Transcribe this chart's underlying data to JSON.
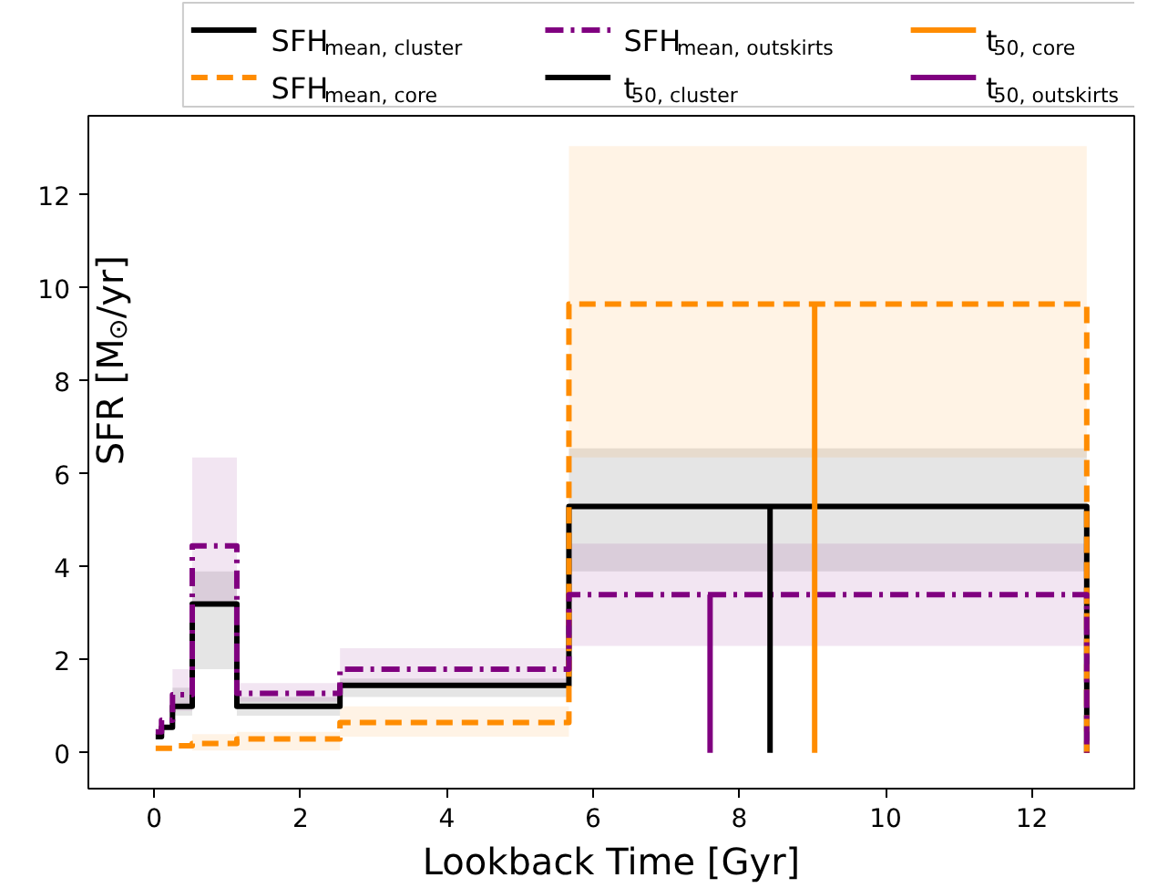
{
  "chart_data": {
    "type": "step",
    "xlabel": "Lookback Time [Gyr]",
    "ylabel": "SFR [M$_{⊙}$/yr]",
    "xlim": [
      -0.9,
      13.4
    ],
    "ylim": [
      -0.77,
      13.7
    ],
    "xticks": [
      0,
      2,
      4,
      6,
      8,
      10,
      12
    ],
    "yticks": [
      0,
      2,
      4,
      6,
      8,
      10,
      12
    ],
    "grid": false,
    "legend": "top",
    "series": [
      {
        "name": "SFH$_{mean, cluster}$",
        "color": "#000000",
        "line_style": "solid",
        "x": [
          0.02,
          0.1,
          0.25,
          0.52,
          1.13,
          2.54,
          5.67,
          12.75
        ],
        "values": [
          0.35,
          0.55,
          1.0,
          3.2,
          1.0,
          1.45,
          5.3,
          0
        ],
        "lower": [
          null,
          null,
          0.8,
          1.8,
          0.8,
          1.2,
          3.9,
          3.9
        ],
        "upper": [
          null,
          null,
          1.4,
          3.9,
          1.2,
          1.6,
          6.55,
          6.55
        ]
      },
      {
        "name": "SFH$_{mean, core}$",
        "color": "#ff8c00",
        "line_style": "dashed",
        "x": [
          0.02,
          0.1,
          0.25,
          0.52,
          1.13,
          2.54,
          5.67,
          12.75
        ],
        "values": [
          0.1,
          0.1,
          0.15,
          0.2,
          0.3,
          0.65,
          9.65,
          0
        ],
        "lower": [
          null,
          null,
          null,
          0.05,
          0.05,
          0.35,
          6.35,
          6.35
        ],
        "upper": [
          null,
          null,
          null,
          0.4,
          0.45,
          1.0,
          13.05,
          13.05
        ]
      },
      {
        "name": "SFH$_{mean, outskirts}$",
        "color": "#800080",
        "line_style": "dashdot",
        "x": [
          0.02,
          0.1,
          0.25,
          0.52,
          1.13,
          2.54,
          5.67,
          12.75
        ],
        "values": [
          0.45,
          0.7,
          1.25,
          4.45,
          1.28,
          1.8,
          3.4,
          0
        ],
        "lower": [
          null,
          null,
          0.9,
          3.2,
          1.1,
          1.5,
          2.3,
          2.3
        ],
        "upper": [
          null,
          null,
          1.8,
          6.35,
          1.5,
          2.25,
          4.5,
          4.5
        ]
      },
      {
        "name": "t$_{50, cluster}$",
        "type": "line",
        "color": "#000000",
        "line_style": "solid",
        "x": [
          8.42,
          8.42
        ],
        "values": [
          0,
          5.3
        ]
      },
      {
        "name": "t$_{50, core}$",
        "type": "line",
        "color": "#ff8c00",
        "line_style": "solid",
        "x": [
          9.03,
          9.03
        ],
        "values": [
          0,
          9.65
        ]
      },
      {
        "name": "t$_{50, outskirts}$",
        "type": "line",
        "color": "#800080",
        "line_style": "solid",
        "x": [
          7.6,
          7.6
        ],
        "values": [
          0,
          3.4
        ]
      }
    ]
  }
}
